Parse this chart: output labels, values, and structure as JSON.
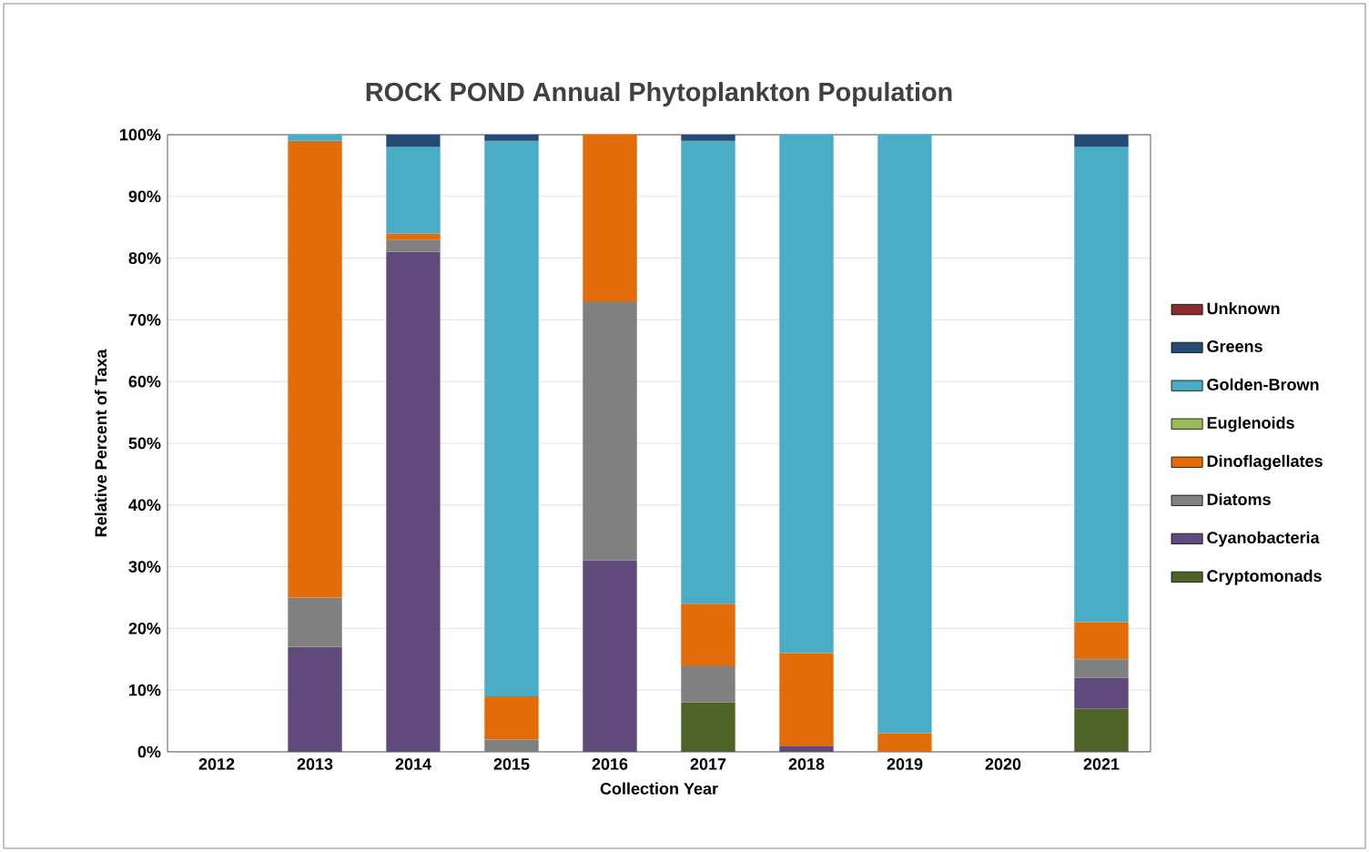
{
  "chart_data": {
    "type": "bar",
    "stacked": true,
    "title": "ROCK POND Annual Phytoplankton Population",
    "xlabel": "Collection Year",
    "ylabel": "Relative Percent of Taxa",
    "categories": [
      "2012",
      "2013",
      "2014",
      "2015",
      "2016",
      "2017",
      "2018",
      "2019",
      "2020",
      "2021"
    ],
    "series": [
      {
        "name": "Cryptomonads",
        "color": "#4f6228",
        "values": [
          null,
          null,
          null,
          null,
          null,
          8,
          null,
          null,
          null,
          7
        ]
      },
      {
        "name": "Cyanobacteria",
        "color": "#604a7b",
        "values": [
          null,
          17,
          81,
          null,
          31,
          null,
          1,
          null,
          null,
          5
        ]
      },
      {
        "name": "Diatoms",
        "color": "#808080",
        "values": [
          null,
          8,
          2,
          2,
          42,
          6,
          null,
          null,
          null,
          3
        ]
      },
      {
        "name": "Dinoflagellates",
        "color": "#e36c0a",
        "values": [
          null,
          74,
          1,
          7,
          27,
          10,
          15,
          3,
          null,
          6
        ]
      },
      {
        "name": "Euglenoids",
        "color": "#9bbb59",
        "values": [
          null,
          null,
          null,
          null,
          null,
          null,
          null,
          null,
          null,
          null
        ]
      },
      {
        "name": "Golden-Brown",
        "color": "#4bacc6",
        "values": [
          null,
          1,
          14,
          90,
          null,
          75,
          84,
          97,
          null,
          77
        ]
      },
      {
        "name": "Greens",
        "color": "#254a73",
        "values": [
          null,
          null,
          2,
          1,
          null,
          1,
          null,
          null,
          null,
          2
        ]
      },
      {
        "name": "Unknown",
        "color": "#8b2a2a",
        "values": [
          null,
          null,
          null,
          null,
          null,
          null,
          null,
          null,
          null,
          null
        ]
      }
    ],
    "ylim": [
      0,
      100
    ],
    "yticks": [
      {
        "value": 0,
        "label": "0%"
      },
      {
        "value": 10,
        "label": "10%"
      },
      {
        "value": 20,
        "label": "20%"
      },
      {
        "value": 30,
        "label": "30%"
      },
      {
        "value": 40,
        "label": "40%"
      },
      {
        "value": 50,
        "label": "50%"
      },
      {
        "value": 60,
        "label": "60%"
      },
      {
        "value": 70,
        "label": "70%"
      },
      {
        "value": 80,
        "label": "80%"
      },
      {
        "value": 90,
        "label": "90%"
      },
      {
        "value": 100,
        "label": "100%"
      }
    ],
    "grid": "y",
    "legend": "right"
  }
}
